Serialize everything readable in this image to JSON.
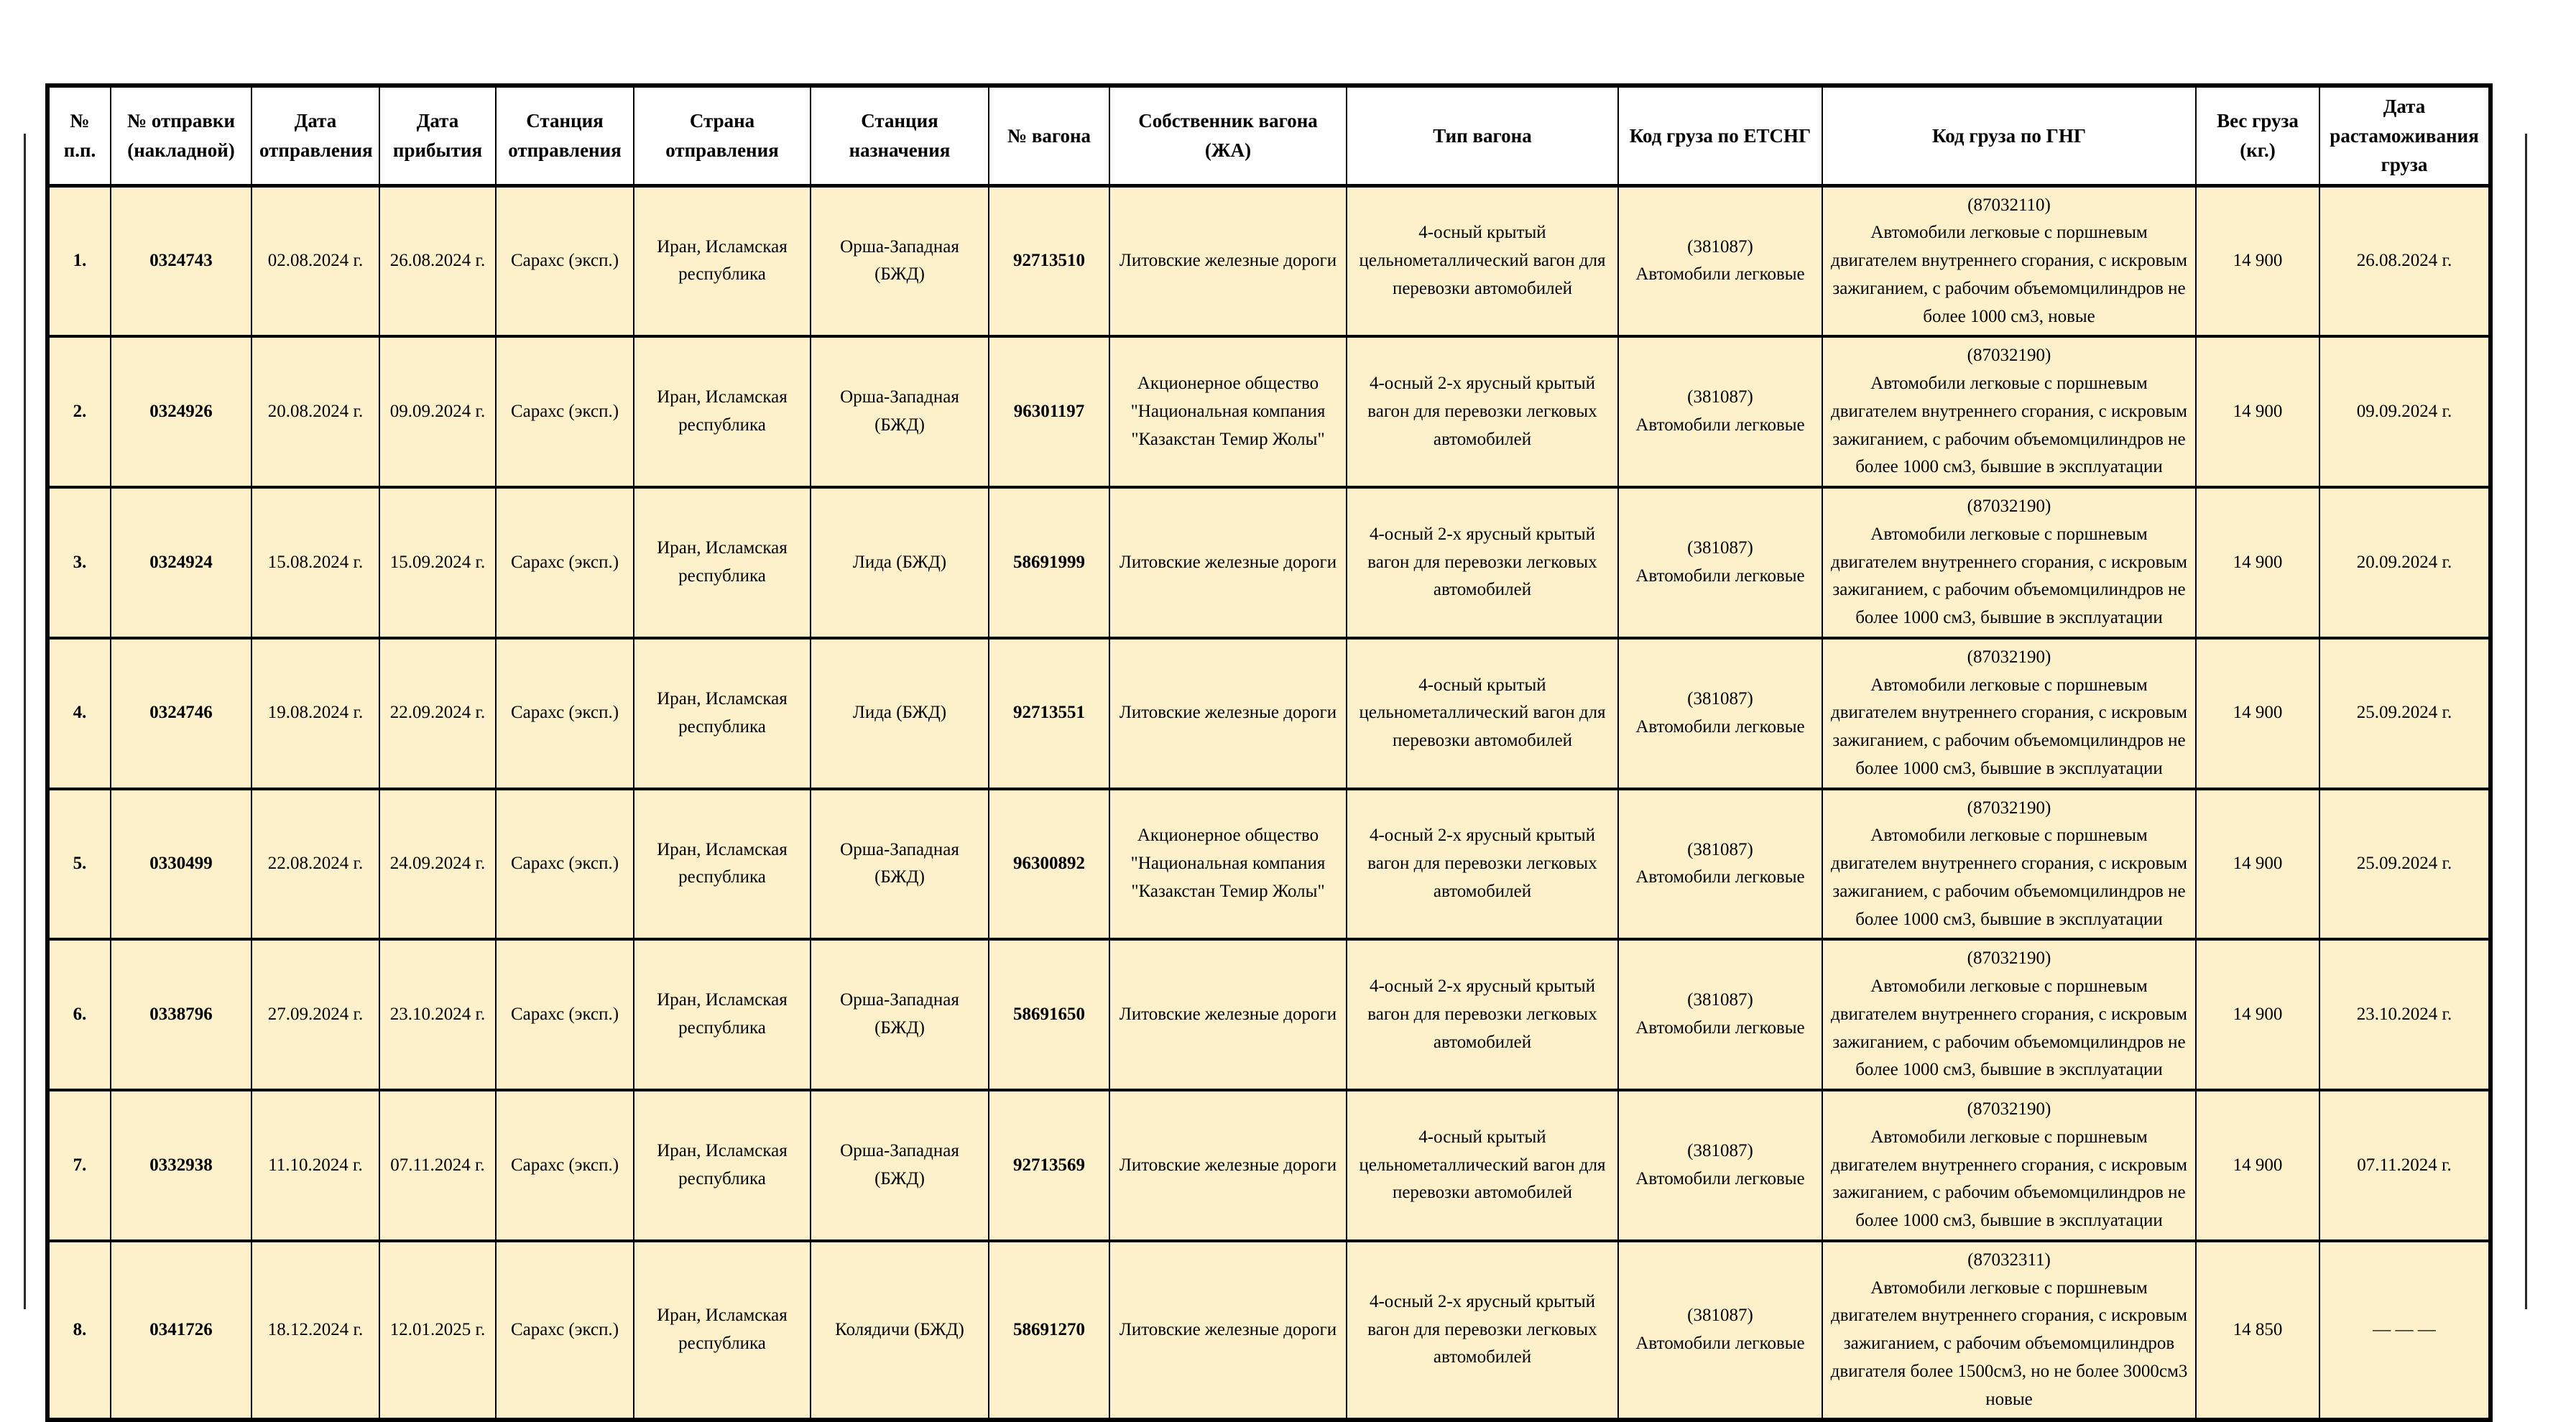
{
  "table": {
    "headers": [
      {
        "id": "num",
        "label": "№ п.п."
      },
      {
        "id": "shipment_no",
        "label": "№ отправки (накладной)"
      },
      {
        "id": "departure_date",
        "label": "Дата отправления"
      },
      {
        "id": "arrival_date",
        "label": "Дата прибытия"
      },
      {
        "id": "departure_station",
        "label": "Станция отправления"
      },
      {
        "id": "departure_country",
        "label": "Страна отправления"
      },
      {
        "id": "destination_station",
        "label": "Станция назначения"
      },
      {
        "id": "wagon_no",
        "label": "№ вагона"
      },
      {
        "id": "wagon_owner",
        "label": "Собственник вагона (ЖА)"
      },
      {
        "id": "wagon_type",
        "label": "Тип вагона"
      },
      {
        "id": "etsng",
        "label": "Код груза по ЕТСНГ"
      },
      {
        "id": "gng",
        "label": "Код груза по ГНГ"
      },
      {
        "id": "weight",
        "label": "Вес груза (кг.)"
      },
      {
        "id": "customs_date",
        "label": "Дата растаможивания груза"
      }
    ],
    "rows": [
      {
        "num": "1.",
        "shipment_no": "0324743",
        "departure_date": "02.08.2024 г.",
        "arrival_date": "26.08.2024 г.",
        "departure_station": "Сарахс (эксп.)",
        "departure_country": "Иран, Исламская республика",
        "destination_station": "Орша-Западная (БЖД)",
        "wagon_no": "92713510",
        "wagon_owner": "Литовские железные дороги",
        "wagon_type": "4-осный крытый цельнометаллический вагон для перевозки автомобилей",
        "etsng_code": "(381087)",
        "etsng_name": "Автомобили легковые",
        "gng_code": "(87032110)",
        "gng_desc": "Автомобили легковые с поршневым двигателем внутреннего сгорания, с искровым зажиганием, с рабочим объемомцилиндров не более 1000 см3, новые",
        "weight": "14 900",
        "customs_date": "26.08.2024 г."
      },
      {
        "num": "2.",
        "shipment_no": "0324926",
        "departure_date": "20.08.2024 г.",
        "arrival_date": "09.09.2024 г.",
        "departure_station": "Сарахс (эксп.)",
        "departure_country": "Иран, Исламская республика",
        "destination_station": "Орша-Западная (БЖД)",
        "wagon_no": "96301197",
        "wagon_owner": "Акционерное общество \"Национальная компания \"Казакстан Темир Жолы\"",
        "wagon_type": "4-осный 2-х ярусный крытый вагон для перевозки легковых автомобилей",
        "etsng_code": "(381087)",
        "etsng_name": "Автомобили легковые",
        "gng_code": "(87032190)",
        "gng_desc": "Автомобили легковые с поршневым двигателем внутреннего сгорания, с искровым зажиганием, с рабочим объемомцилиндров не более 1000 см3, бывшие в эксплуатации",
        "weight": "14 900",
        "customs_date": "09.09.2024 г."
      },
      {
        "num": "3.",
        "shipment_no": "0324924",
        "departure_date": "15.08.2024 г.",
        "arrival_date": "15.09.2024 г.",
        "departure_station": "Сарахс (эксп.)",
        "departure_country": "Иран, Исламская республика",
        "destination_station": "Лида (БЖД)",
        "wagon_no": "58691999",
        "wagon_owner": "Литовские железные дороги",
        "wagon_type": "4-осный 2-х ярусный крытый вагон для перевозки легковых автомобилей",
        "etsng_code": "(381087)",
        "etsng_name": "Автомобили легковые",
        "gng_code": "(87032190)",
        "gng_desc": "Автомобили легковые с поршневым двигателем внутреннего сгорания, с искровым зажиганием, с рабочим объемомцилиндров не более 1000 см3, бывшие в эксплуатации",
        "weight": "14 900",
        "customs_date": "20.09.2024 г."
      },
      {
        "num": "4.",
        "shipment_no": "0324746",
        "departure_date": "19.08.2024 г.",
        "arrival_date": "22.09.2024 г.",
        "departure_station": "Сарахс (эксп.)",
        "departure_country": "Иран, Исламская республика",
        "destination_station": "Лида (БЖД)",
        "wagon_no": "92713551",
        "wagon_owner": "Литовские железные дороги",
        "wagon_type": "4-осный крытый цельнометаллический вагон для перевозки автомобилей",
        "etsng_code": "(381087)",
        "etsng_name": "Автомобили легковые",
        "gng_code": "(87032190)",
        "gng_desc": "Автомобили легковые с поршневым двигателем внутреннего сгорания, с искровым зажиганием, с рабочим объемомцилиндров не более 1000 см3, бывшие в эксплуатации",
        "weight": "14 900",
        "customs_date": "25.09.2024 г."
      },
      {
        "num": "5.",
        "shipment_no": "0330499",
        "departure_date": "22.08.2024 г.",
        "arrival_date": "24.09.2024 г.",
        "departure_station": "Сарахс (эксп.)",
        "departure_country": "Иран, Исламская республика",
        "destination_station": "Орша-Западная (БЖД)",
        "wagon_no": "96300892",
        "wagon_owner": "Акционерное общество \"Национальная компания \"Казакстан Темир Жолы\"",
        "wagon_type": "4-осный 2-х ярусный крытый вагон для перевозки легковых автомобилей",
        "etsng_code": "(381087)",
        "etsng_name": "Автомобили легковые",
        "gng_code": "(87032190)",
        "gng_desc": "Автомобили легковые с поршневым двигателем внутреннего сгорания, с искровым зажиганием, с рабочим объемомцилиндров не более 1000 см3, бывшие в эксплуатации",
        "weight": "14 900",
        "customs_date": "25.09.2024 г."
      },
      {
        "num": "6.",
        "shipment_no": "0338796",
        "departure_date": "27.09.2024 г.",
        "arrival_date": "23.10.2024 г.",
        "departure_station": "Сарахс (эксп.)",
        "departure_country": "Иран, Исламская республика",
        "destination_station": "Орша-Западная (БЖД)",
        "wagon_no": "58691650",
        "wagon_owner": "Литовские железные дороги",
        "wagon_type": "4-осный 2-х ярусный крытый вагон для перевозки легковых автомобилей",
        "etsng_code": "(381087)",
        "etsng_name": "Автомобили легковые",
        "gng_code": "(87032190)",
        "gng_desc": "Автомобили легковые с поршневым двигателем внутреннего сгорания, с искровым зажиганием, с рабочим объемомцилиндров не более 1000 см3, бывшие в эксплуатации",
        "weight": "14 900",
        "customs_date": "23.10.2024 г."
      },
      {
        "num": "7.",
        "shipment_no": "0332938",
        "departure_date": "11.10.2024 г.",
        "arrival_date": "07.11.2024 г.",
        "departure_station": "Сарахс (эксп.)",
        "departure_country": "Иран, Исламская республика",
        "destination_station": "Орша-Западная (БЖД)",
        "wagon_no": "92713569",
        "wagon_owner": "Литовские железные дороги",
        "wagon_type": "4-осный крытый цельнометаллический вагон для перевозки автомобилей",
        "etsng_code": "(381087)",
        "etsng_name": "Автомобили легковые",
        "gng_code": "(87032190)",
        "gng_desc": "Автомобили легковые с поршневым двигателем внутреннего сгорания, с искровым зажиганием, с рабочим объемомцилиндров не более 1000 см3, бывшие в эксплуатации",
        "weight": "14 900",
        "customs_date": "07.11.2024 г."
      },
      {
        "num": "8.",
        "shipment_no": "0341726",
        "departure_date": "18.12.2024 г.",
        "arrival_date": "12.01.2025 г.",
        "departure_station": "Сарахс (эксп.)",
        "departure_country": "Иран, Исламская республика",
        "destination_station": "Колядичи (БЖД)",
        "wagon_no": "58691270",
        "wagon_owner": "Литовские железные дороги",
        "wagon_type": "4-осный 2-х ярусный крытый вагон для перевозки легковых автомобилей",
        "etsng_code": "(381087)",
        "etsng_name": "Автомобили легковые",
        "gng_code": "(87032311)",
        "gng_desc": "Автомобили легковые с поршневым двигателем внутреннего сгорания, с искровым зажиганием, с рабочим объемомцилиндров двигателя более 1500см3, но не более 3000см3 новые",
        "weight": "14 850",
        "customs_date": "— — —"
      }
    ]
  },
  "colors": {
    "row_background": "#FCF1CB",
    "header_background": "#FFFFFF",
    "border": "#000000"
  }
}
